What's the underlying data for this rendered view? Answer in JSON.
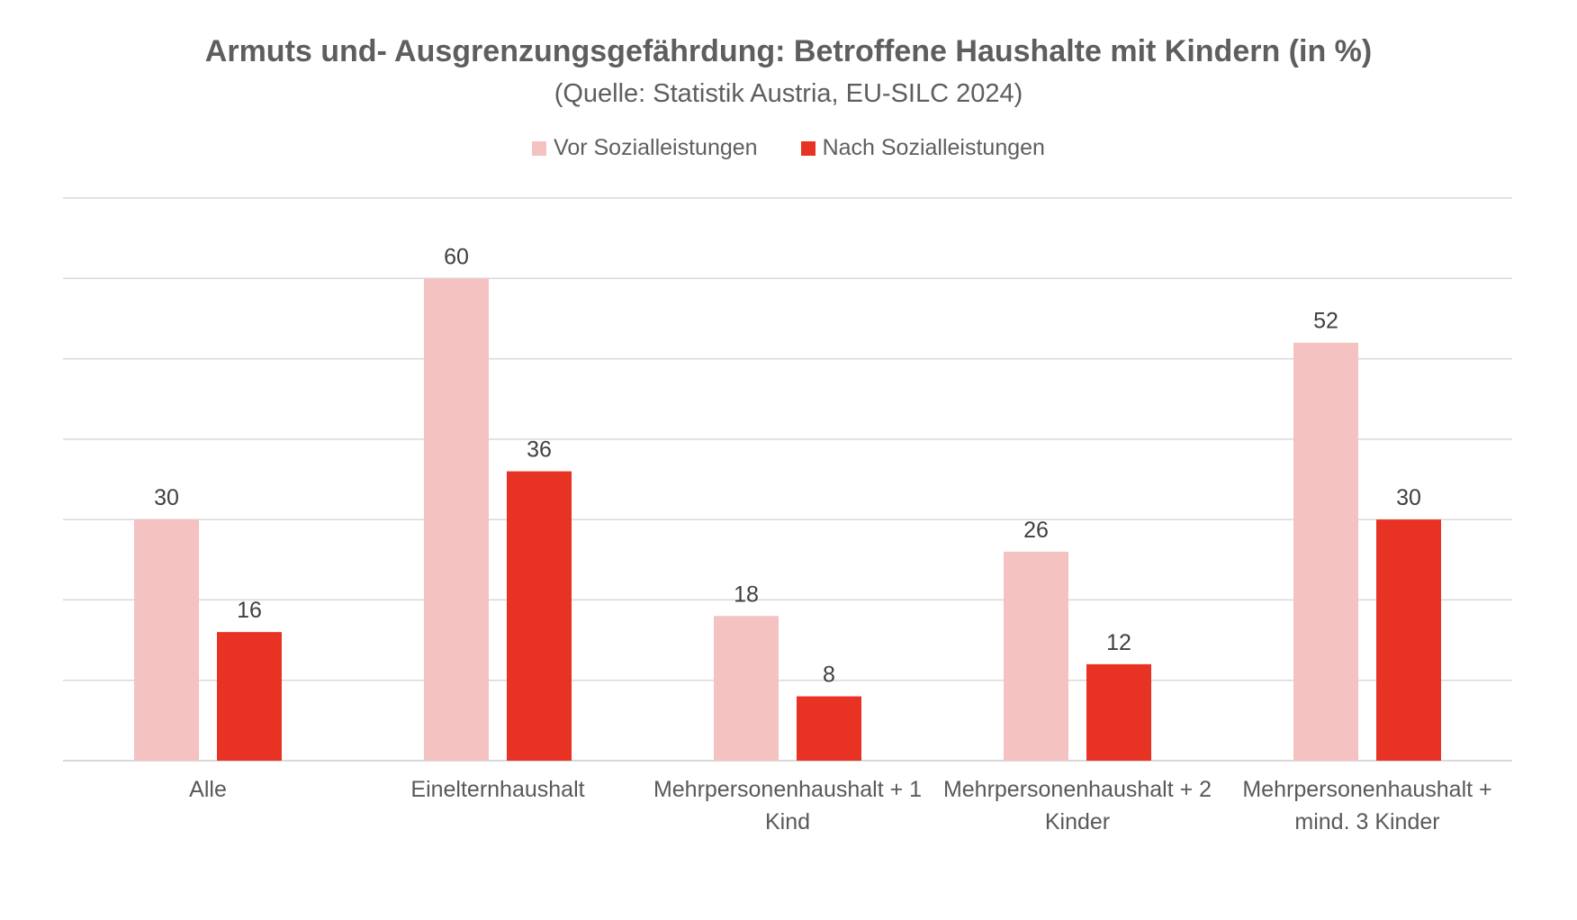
{
  "chart_data": {
    "type": "bar",
    "title": "Armuts und- Ausgrenzungsgefährdung: Betroffene Haushalte mit Kindern (in %)",
    "subtitle": "(Quelle: Statistik Austria, EU-SILC 2024)",
    "categories": [
      [
        "Alle"
      ],
      [
        "Einelternhaushalt"
      ],
      [
        "Mehrpersonenhaushalt + 1",
        "Kind"
      ],
      [
        "Mehrpersonenhaushalt + 2",
        "Kinder"
      ],
      [
        "Mehrpersonenhaushalt +",
        "mind. 3 Kinder"
      ]
    ],
    "series": [
      {
        "name": "Vor Sozialleistungen",
        "color": "#f4c2c0",
        "values": [
          30,
          60,
          18,
          26,
          52
        ]
      },
      {
        "name": "Nach Sozialleistungen",
        "color": "#e83224",
        "values": [
          16,
          36,
          8,
          12,
          30
        ]
      }
    ],
    "ylim": [
      0,
      70
    ],
    "y_gridline_step": 10,
    "y_axis_labels_shown": false,
    "grid": true,
    "legend_position": "top",
    "data_labels": true,
    "gridline_color": "#d9d9d9"
  }
}
